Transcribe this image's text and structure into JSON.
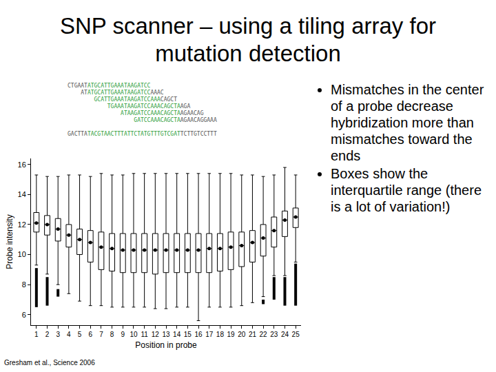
{
  "slide": {
    "title": "SNP scanner – using a tiling array for mutation detection",
    "bullets": [
      "Mismatches in the center of a probe decrease hybridization more than mismatches toward the ends",
      "Boxes show the interquartile range (there is a lot of variation!)"
    ],
    "citation": "Gresham et al., Science 2006",
    "alignment": [
      [
        "CTGAAT",
        "ATGCATTGAAATAAGATCC"
      ],
      [
        "    AT",
        "ATGCATTGAAATAAGATCC",
        "AAAC"
      ],
      [
        "        ",
        "GCATTGAAATAAGATCCAAA",
        "CAGCT"
      ],
      [
        "            ",
        "TGAAATAAGATCCAAACAGCTA",
        "AGA"
      ],
      [
        "                ",
        "ATAAGATCCAAACAGCTA",
        "AGAACAG"
      ],
      [
        "                    ",
        "GATCCAAACAGCTA",
        "AGAACAGGAAA"
      ]
    ],
    "reference": [
      "GACTTA",
      "TACGTAACTTTATTCTATGTTTGTCGAT",
      "TCTTGTCCTTT"
    ]
  },
  "chart_data": {
    "type": "box",
    "x_label": "Position in probe",
    "y_label": "Probe intensity",
    "x": [
      1,
      2,
      3,
      4,
      5,
      6,
      7,
      8,
      9,
      10,
      11,
      12,
      13,
      14,
      15,
      16,
      17,
      18,
      19,
      20,
      21,
      22,
      23,
      24,
      25
    ],
    "q1": [
      11.5,
      11.3,
      10.9,
      10.5,
      10.0,
      9.5,
      9.0,
      8.9,
      8.8,
      8.8,
      8.8,
      8.7,
      8.8,
      8.8,
      8.8,
      8.8,
      8.8,
      8.9,
      9.0,
      9.2,
      9.5,
      9.9,
      10.5,
      11.2,
      11.8
    ],
    "medians": [
      12.1,
      12.0,
      11.7,
      11.3,
      11.0,
      10.8,
      10.5,
      10.4,
      10.3,
      10.3,
      10.3,
      10.3,
      10.3,
      10.3,
      10.3,
      10.3,
      10.4,
      10.4,
      10.5,
      10.6,
      10.8,
      11.1,
      11.6,
      12.3,
      12.5
    ],
    "q3": [
      12.8,
      12.6,
      12.4,
      12.0,
      11.7,
      11.6,
      11.5,
      11.4,
      11.4,
      11.4,
      11.4,
      11.4,
      11.4,
      11.4,
      11.4,
      11.4,
      11.4,
      11.4,
      11.5,
      11.5,
      11.6,
      12.0,
      12.5,
      12.9,
      13.1
    ],
    "lower_whiskers": [
      9.3,
      8.7,
      8.0,
      7.4,
      6.9,
      6.6,
      6.6,
      6.5,
      6.5,
      6.5,
      6.5,
      6.4,
      6.4,
      6.5,
      6.5,
      5.6,
      6.5,
      6.5,
      6.5,
      6.6,
      6.8,
      7.2,
      8.6,
      8.6,
      9.5
    ],
    "upper_whiskers": [
      15.3,
      15.2,
      15.2,
      15.3,
      15.3,
      15.2,
      15.4,
      15.3,
      15.3,
      15.4,
      15.4,
      15.4,
      15.4,
      15.4,
      15.4,
      15.4,
      15.4,
      15.4,
      15.4,
      15.3,
      15.3,
      15.2,
      15.3,
      15.8,
      15.3
    ],
    "outlier_ranges": [
      [
        6.5,
        9.1
      ],
      [
        6.6,
        8.5
      ],
      [
        7.2,
        7.7
      ],
      null,
      null,
      null,
      null,
      null,
      null,
      null,
      null,
      null,
      null,
      null,
      null,
      null,
      null,
      null,
      null,
      null,
      null,
      [
        6.7,
        7.0
      ],
      [
        7.0,
        8.5
      ],
      [
        6.6,
        8.5
      ],
      [
        6.6,
        9.4
      ]
    ],
    "color": "#000000",
    "marker": "circle",
    "xlim": [
      0.5,
      25.5
    ],
    "xticks": [
      1,
      2,
      3,
      4,
      5,
      6,
      7,
      8,
      9,
      10,
      11,
      12,
      13,
      14,
      15,
      16,
      17,
      18,
      19,
      20,
      21,
      22,
      23,
      24,
      25
    ],
    "ylim": [
      5.3,
      16.4
    ],
    "yticks": [
      6,
      8,
      10,
      12,
      14,
      16
    ],
    "grid": false
  }
}
